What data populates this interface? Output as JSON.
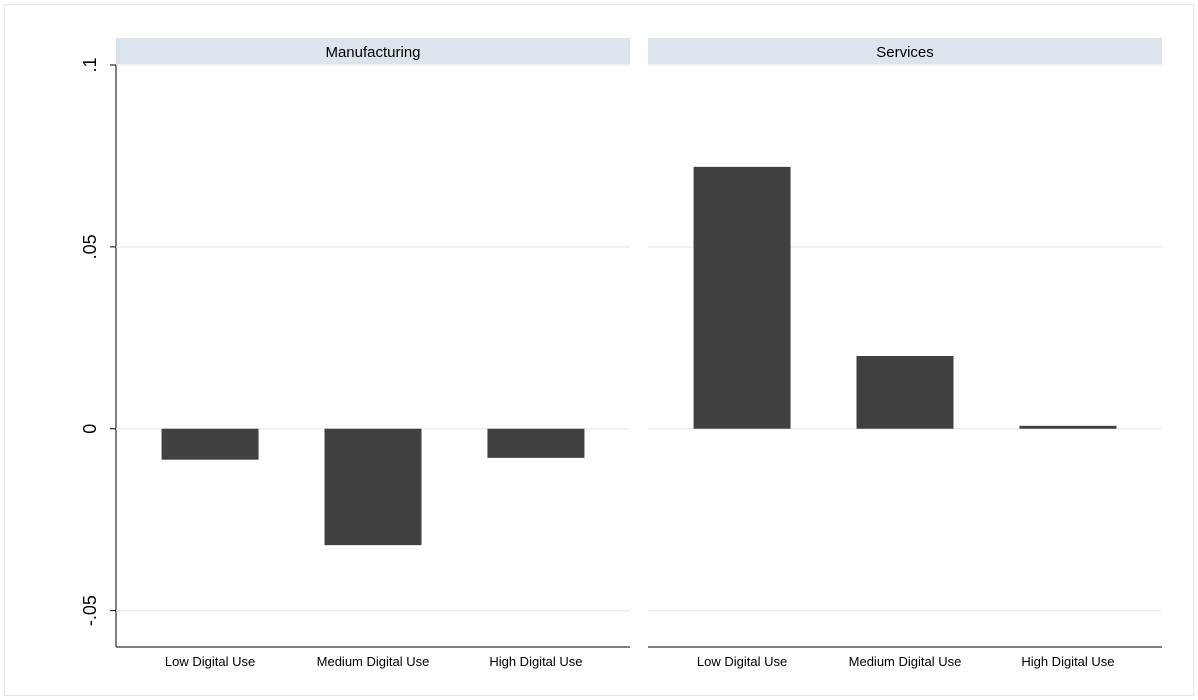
{
  "chart_data": {
    "type": "bar",
    "ylim": [
      -0.06,
      0.1
    ],
    "yticks": [
      {
        "value": -0.05,
        "label": "-.05"
      },
      {
        "value": 0,
        "label": "0"
      },
      {
        "value": 0.05,
        "label": ".05"
      },
      {
        "value": 0.1,
        "label": ".1"
      }
    ],
    "grid": true,
    "colors": {
      "bar": "#404040",
      "panel_header": "#dbe6ec",
      "grid": "#eaeaea",
      "axis": "#000000"
    },
    "categories": [
      "Low Digital Use",
      "Medium Digital Use",
      "High Digital Use"
    ],
    "panels": [
      {
        "title": "Manufacturing",
        "values": [
          -0.0085,
          -0.032,
          -0.008
        ]
      },
      {
        "title": "Services",
        "values": [
          0.072,
          0.02,
          0.0008
        ]
      }
    ]
  }
}
